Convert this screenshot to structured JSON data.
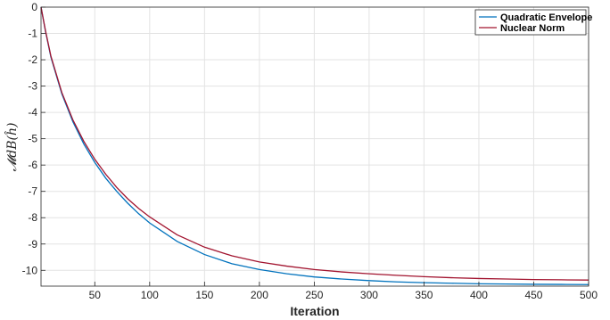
{
  "chart_data": {
    "type": "line",
    "title": "",
    "xlabel": "Iteration",
    "ylabel": "𝓜dB(ĥ)",
    "xlim": [
      1,
      500
    ],
    "ylim": [
      -10.6,
      0
    ],
    "xticks": [
      50,
      100,
      150,
      200,
      250,
      300,
      350,
      400,
      450,
      500
    ],
    "yticks": [
      0,
      -1,
      -2,
      -3,
      -4,
      -5,
      -6,
      -7,
      -8,
      -9,
      -10
    ],
    "grid": true,
    "legend_position": "top-right",
    "x": [
      1,
      5,
      10,
      20,
      30,
      40,
      50,
      60,
      70,
      80,
      90,
      100,
      125,
      150,
      175,
      200,
      225,
      250,
      275,
      300,
      325,
      350,
      375,
      400,
      425,
      450,
      475,
      500
    ],
    "series": [
      {
        "name": "Quadratic Envelope",
        "color": "#0072BD",
        "values": [
          0,
          -0.9,
          -1.9,
          -3.3,
          -4.35,
          -5.2,
          -5.9,
          -6.5,
          -7.0,
          -7.45,
          -7.85,
          -8.2,
          -8.9,
          -9.4,
          -9.75,
          -9.97,
          -10.13,
          -10.25,
          -10.33,
          -10.39,
          -10.44,
          -10.47,
          -10.49,
          -10.51,
          -10.52,
          -10.53,
          -10.535,
          -10.54
        ]
      },
      {
        "name": "Nuclear Norm",
        "color": "#A2142F",
        "values": [
          0,
          -0.88,
          -1.86,
          -3.25,
          -4.28,
          -5.1,
          -5.78,
          -6.35,
          -6.85,
          -7.28,
          -7.65,
          -7.97,
          -8.65,
          -9.12,
          -9.45,
          -9.68,
          -9.84,
          -9.97,
          -10.06,
          -10.13,
          -10.19,
          -10.24,
          -10.28,
          -10.31,
          -10.33,
          -10.35,
          -10.36,
          -10.37
        ]
      }
    ]
  }
}
